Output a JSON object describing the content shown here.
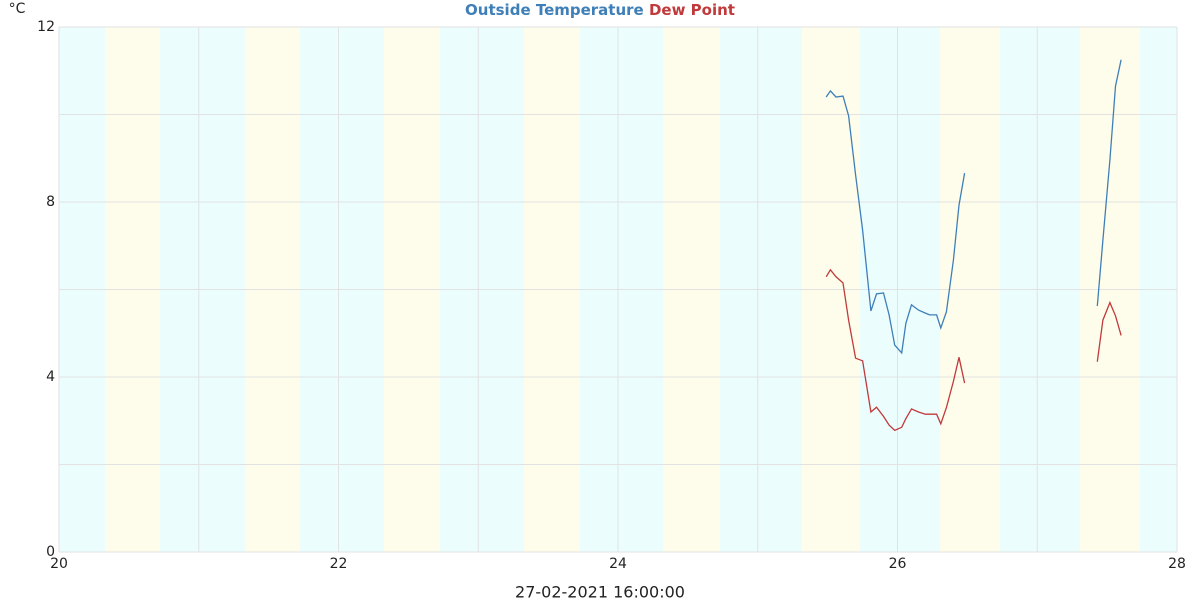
{
  "chart_data": {
    "type": "line",
    "y_label": "°C",
    "x_label": "27-02-2021 16:00:00",
    "x": [
      25.49,
      25.52,
      25.56,
      25.61,
      25.65,
      25.7,
      25.75,
      25.81,
      25.85,
      25.9,
      25.94,
      25.98,
      26.03,
      26.06,
      26.1,
      26.15,
      26.2,
      26.23,
      26.28,
      26.31,
      26.35,
      26.4,
      26.44,
      26.48,
      27.0,
      27.43,
      27.47,
      27.52,
      27.56,
      27.6
    ],
    "series": [
      {
        "name": "Outside Temperature",
        "color": "#3f7fb8",
        "values": [
          10.4,
          10.54,
          10.4,
          10.42,
          9.97,
          8.62,
          7.36,
          5.51,
          5.9,
          5.92,
          5.42,
          4.73,
          4.55,
          5.23,
          5.65,
          5.53,
          5.46,
          5.42,
          5.42,
          5.12,
          5.49,
          6.67,
          7.93,
          8.66,
          null,
          5.62,
          7.13,
          8.96,
          10.65,
          11.25
        ]
      },
      {
        "name": "Dew Point",
        "color": "#c0393b",
        "values": [
          6.29,
          6.45,
          6.29,
          6.15,
          5.3,
          4.43,
          4.37,
          3.2,
          3.31,
          3.1,
          2.9,
          2.78,
          2.85,
          3.05,
          3.27,
          3.2,
          3.15,
          3.15,
          3.15,
          2.93,
          3.3,
          3.9,
          4.45,
          3.86,
          null,
          4.35,
          5.3,
          5.7,
          5.4,
          4.95
        ]
      }
    ],
    "xlim": [
      20,
      28
    ],
    "xticks": [
      20,
      22,
      24,
      26,
      28
    ],
    "minor_xticks": [
      21,
      23,
      25,
      27
    ],
    "ylim": [
      0,
      12
    ],
    "yticks": [
      0,
      4,
      8,
      12
    ],
    "minor_yticks": [
      2,
      6,
      10
    ],
    "grid": true
  }
}
